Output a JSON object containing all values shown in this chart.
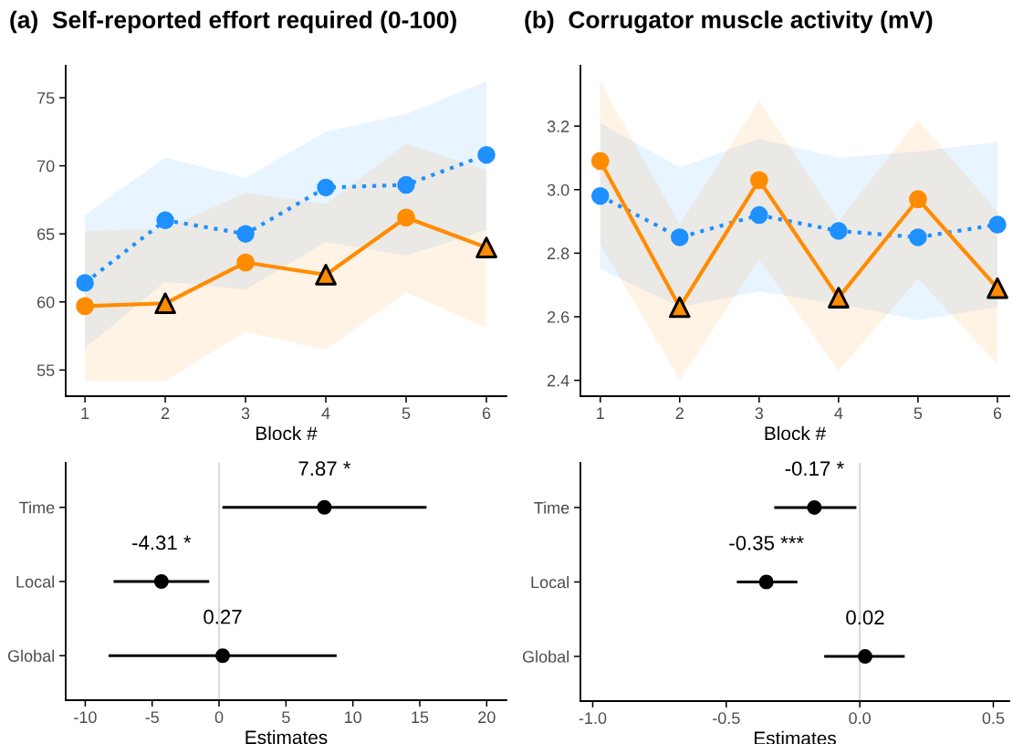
{
  "chart_data": [
    {
      "type": "line",
      "title": "(a)  Self-reported effort required (0-100)",
      "xlabel": "Block #",
      "x": [
        1,
        2,
        3,
        4,
        5,
        6
      ],
      "xlim": [
        0.76,
        6.25
      ],
      "xticks": [
        1,
        2,
        3,
        4,
        5,
        6
      ],
      "ylim": [
        53.08,
        77.35
      ],
      "yticks": [
        55,
        60,
        65,
        70,
        75
      ],
      "series": [
        {
          "type": "line",
          "color": "#1e90ff",
          "line_style": "dotted",
          "marker": "circle",
          "values": [
            61.4,
            66.0,
            65.0,
            68.4,
            68.6,
            70.8
          ],
          "lower": [
            56.6,
            61.5,
            60.9,
            64.4,
            63.4,
            65.3
          ],
          "upper": [
            66.4,
            70.6,
            69.1,
            72.5,
            73.8,
            76.2
          ]
        },
        {
          "type": "line",
          "color": "#ff8c00",
          "line_style": "solid",
          "marker": "none",
          "values": [
            59.7,
            59.9,
            62.9,
            62.0,
            66.2,
            64.0
          ],
          "lower": [
            54.2,
            54.2,
            57.8,
            56.5,
            60.7,
            58.1
          ],
          "upper": [
            65.2,
            65.4,
            68.0,
            67.2,
            71.6,
            69.7
          ]
        },
        {
          "type": "scatter",
          "color": "#ff8c00",
          "marker": "circle",
          "x": [
            1,
            3,
            5
          ],
          "values": [
            59.7,
            62.9,
            66.2
          ]
        },
        {
          "type": "scatter",
          "color": "#ff8c00",
          "marker": "triangle",
          "x": [
            2,
            4,
            6
          ],
          "values": [
            59.9,
            62.0,
            64.0
          ]
        }
      ]
    },
    {
      "type": "line",
      "title": "(b)  Corrugator muscle activity (mV)",
      "xlabel": "Block #",
      "x": [
        1,
        2,
        3,
        4,
        5,
        6
      ],
      "xlim": [
        0.75,
        6.15
      ],
      "xticks": [
        1,
        2,
        3,
        4,
        5,
        6
      ],
      "ylim": [
        2.35,
        3.39
      ],
      "yticks": [
        2.4,
        2.6,
        2.8,
        {
          "value": 3,
          "label": "3.0"
        },
        3.2
      ],
      "series": [
        {
          "type": "line",
          "color": "#1e90ff",
          "line_style": "dotted",
          "marker": "circle",
          "values": [
            2.98,
            2.85,
            2.92,
            2.87,
            2.85,
            2.89
          ],
          "lower": [
            2.75,
            2.63,
            2.68,
            2.64,
            2.59,
            2.63
          ],
          "upper": [
            3.21,
            3.07,
            3.16,
            3.1,
            3.12,
            3.15
          ]
        },
        {
          "type": "line",
          "color": "#ff8c00",
          "line_style": "solid",
          "marker": "none",
          "values": [
            3.09,
            2.63,
            3.03,
            2.66,
            2.97,
            2.69
          ],
          "lower": [
            2.83,
            2.4,
            2.78,
            2.43,
            2.72,
            2.45
          ],
          "upper": [
            3.34,
            2.89,
            3.28,
            2.9,
            3.22,
            2.93
          ]
        },
        {
          "type": "scatter",
          "color": "#ff8c00",
          "marker": "circle",
          "x": [
            1,
            3,
            5
          ],
          "values": [
            3.09,
            3.03,
            2.97
          ]
        },
        {
          "type": "scatter",
          "color": "#ff8c00",
          "marker": "triangle",
          "x": [
            2,
            4,
            6
          ],
          "values": [
            2.63,
            2.66,
            2.69
          ]
        }
      ]
    },
    {
      "type": "scatter",
      "orientation": "horizontal",
      "xlabel": "Estimates",
      "categories": [
        "Time",
        "Local",
        "Global"
      ],
      "values": [
        7.87,
        -4.31,
        0.27
      ],
      "errors": [
        [
          0.35,
          15.4
        ],
        [
          -7.78,
          -0.84
        ],
        [
          -8.15,
          8.68
        ]
      ],
      "value_labels": [
        "7.87 *",
        "-4.31 *",
        "0.27"
      ],
      "color": "#000000",
      "marker": "circle",
      "xlim": [
        -11.46,
        21.48
      ],
      "xticks": [
        -10,
        -5,
        0,
        5,
        10,
        15,
        20
      ],
      "ref_lines": [
        {
          "axis": "x",
          "value": 0,
          "color": "#c8c8c8"
        }
      ]
    },
    {
      "type": "scatter",
      "orientation": "horizontal",
      "xlabel": "Estimates",
      "categories": [
        "Time",
        "Local",
        "Global"
      ],
      "values": [
        -0.17,
        -0.35,
        0.02
      ],
      "errors": [
        [
          -0.315,
          -0.018
        ],
        [
          -0.455,
          -0.239
        ],
        [
          -0.128,
          0.163
        ]
      ],
      "value_labels": [
        "-0.17 *",
        "-0.35 ***",
        "0.02"
      ],
      "color": "#000000",
      "marker": "circle",
      "xlim": [
        -1.046,
        0.56
      ],
      "xticks": [
        {
          "value": -1,
          "label": "-1.0"
        },
        -0.5,
        {
          "value": 0,
          "label": "0.0"
        },
        0.5
      ],
      "ref_lines": [
        {
          "axis": "x",
          "value": 0,
          "color": "#c8c8c8"
        }
      ]
    }
  ]
}
